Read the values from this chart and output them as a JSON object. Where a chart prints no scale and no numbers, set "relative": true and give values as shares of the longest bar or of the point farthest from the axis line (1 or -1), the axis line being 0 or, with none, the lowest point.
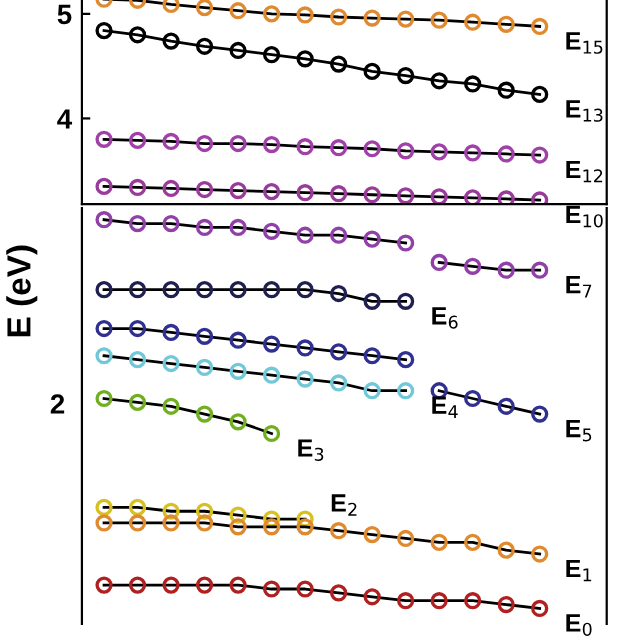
{
  "chart_data": [
    {
      "type": "line",
      "marker": "circle",
      "line_style": "solid",
      "grid": false,
      "legend": false,
      "tick_labels": "y",
      "categories": [
        null,
        null,
        null,
        null,
        null,
        null,
        null,
        null,
        null,
        null,
        null,
        null,
        null,
        null
      ],
      "ylim": [
        3.18,
        5.2
      ],
      "yticks": [
        4,
        5
      ],
      "series": [
        {
          "name": "E$_{15}$",
          "color": "#e08a30",
          "values": [
            5.14,
            5.13,
            5.09,
            5.06,
            5.03,
            5.0,
            4.99,
            4.97,
            4.96,
            4.95,
            4.94,
            4.92,
            4.9,
            4.88
          ]
        },
        {
          "name": "E$_{13}$",
          "color": "#000000",
          "values": [
            4.84,
            4.8,
            4.74,
            4.69,
            4.65,
            4.61,
            4.57,
            4.52,
            4.45,
            4.41,
            4.36,
            4.33,
            4.27,
            4.23
          ]
        },
        {
          "name": "E$_{12}$",
          "color": "#a040a8",
          "values": [
            3.8,
            3.79,
            3.78,
            3.76,
            3.76,
            3.75,
            3.73,
            3.72,
            3.71,
            3.69,
            3.68,
            3.67,
            3.66,
            3.65
          ]
        },
        {
          "name": "E$_{10}$",
          "color": "#9a3a9a",
          "values": [
            3.35,
            3.34,
            3.33,
            3.32,
            3.31,
            3.3,
            3.29,
            3.28,
            3.27,
            3.26,
            3.25,
            3.24,
            3.23,
            3.22
          ]
        }
      ]
    },
    {
      "type": "line",
      "marker": "circle",
      "line_style": "solid",
      "grid": false,
      "legend": false,
      "tick_labels": false,
      "relative": true,
      "ylabel": "E (eV)",
      "annotations": [
        "2"
      ],
      "categories": [
        null,
        null,
        null,
        null,
        null,
        null,
        null,
        null,
        null,
        null,
        null,
        null,
        null,
        null
      ],
      "series": [
        {
          "color": "#9040a8",
          "values": [
            1.0,
            0.99,
            0.99,
            0.98,
            0.98,
            0.97,
            0.96,
            0.96,
            0.95,
            0.94,
            null,
            null,
            null,
            null
          ]
        },
        {
          "name": "E$_{7}$",
          "color": "#9040a8",
          "values": [
            null,
            null,
            null,
            null,
            null,
            null,
            null,
            null,
            null,
            null,
            0.89,
            0.88,
            0.87,
            0.87
          ]
        },
        {
          "name": "E$_{6}$",
          "color": "#202050",
          "values": [
            0.82,
            0.82,
            0.82,
            0.82,
            0.82,
            0.82,
            0.82,
            0.81,
            0.79,
            0.79,
            null,
            null,
            null,
            null
          ]
        },
        {
          "color": "#303090",
          "values": [
            0.72,
            0.72,
            0.71,
            0.7,
            0.69,
            0.68,
            0.67,
            0.66,
            0.65,
            0.64,
            null,
            null,
            null,
            null
          ]
        },
        {
          "name": "E$_{5}$",
          "color": "#303090",
          "values": [
            null,
            null,
            null,
            null,
            null,
            null,
            null,
            null,
            null,
            null,
            0.56,
            0.54,
            0.52,
            0.5
          ]
        },
        {
          "name": "E$_{4}$",
          "color": "#70c8d8",
          "values": [
            0.65,
            0.64,
            0.63,
            0.62,
            0.61,
            0.6,
            0.59,
            0.58,
            0.56,
            0.56,
            null,
            null,
            null,
            null
          ]
        },
        {
          "name": "E$_{3}$",
          "color": "#70b020",
          "values": [
            0.54,
            0.53,
            0.52,
            0.5,
            0.48,
            0.45,
            null,
            null,
            null,
            null,
            null,
            null,
            null,
            null
          ]
        },
        {
          "name": "E$_{2}$",
          "color": "#d8c020",
          "values": [
            0.26,
            0.26,
            0.25,
            0.25,
            0.24,
            0.23,
            0.23,
            null,
            null,
            null,
            null,
            null,
            null,
            null
          ]
        },
        {
          "name": "E$_{1}$",
          "color": "#e08a30",
          "values": [
            0.22,
            0.22,
            0.22,
            0.22,
            0.21,
            0.21,
            0.21,
            0.2,
            0.19,
            0.18,
            0.17,
            0.17,
            0.15,
            0.14
          ]
        },
        {
          "name": "E$_{0}$",
          "color": "#b02020",
          "values": [
            0.06,
            0.06,
            0.06,
            0.06,
            0.06,
            0.05,
            0.05,
            0.04,
            0.03,
            0.02,
            0.02,
            0.02,
            0.01,
            0.0
          ]
        }
      ]
    }
  ]
}
